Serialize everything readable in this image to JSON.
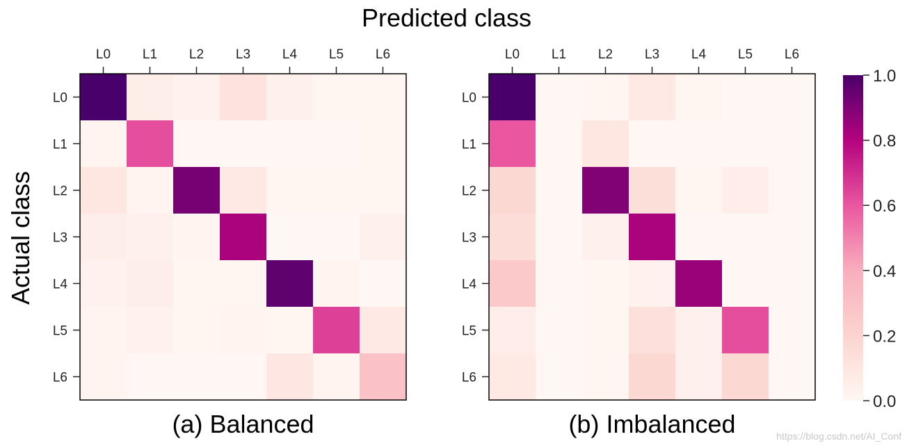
{
  "figure": {
    "title": "Predicted class",
    "ylabel": "Actual class",
    "watermark": "https://blog.csdn.net/AI_Conf"
  },
  "colormap": {
    "name": "RdPu",
    "stops": [
      [
        0.0,
        "#fff7f3"
      ],
      [
        0.2,
        "#fcd4cf"
      ],
      [
        0.4,
        "#f8aebe"
      ],
      [
        0.6,
        "#ea569f"
      ],
      [
        0.8,
        "#b5037f"
      ],
      [
        1.0,
        "#4a006a"
      ]
    ],
    "ticks": [
      "0.0",
      "0.2",
      "0.4",
      "0.6",
      "0.8",
      "1.0"
    ],
    "range": [
      0,
      1
    ]
  },
  "chart_data": [
    {
      "type": "heatmap",
      "title": "(a) Balanced",
      "xlabel": "Predicted class",
      "ylabel": "Actual class",
      "x_categories": [
        "L0",
        "L1",
        "L2",
        "L3",
        "L4",
        "L5",
        "L6"
      ],
      "y_categories": [
        "L0",
        "L1",
        "L2",
        "L3",
        "L4",
        "L5",
        "L6"
      ],
      "values": [
        [
          1.0,
          0.05,
          0.03,
          0.12,
          0.04,
          0.01,
          0.01
        ],
        [
          0.02,
          0.62,
          0.0,
          0.0,
          0.0,
          0.0,
          0.01
        ],
        [
          0.1,
          0.02,
          0.92,
          0.08,
          0.01,
          0.01,
          0.01
        ],
        [
          0.05,
          0.04,
          0.02,
          0.82,
          0.0,
          0.0,
          0.04
        ],
        [
          0.03,
          0.05,
          0.01,
          0.01,
          0.96,
          0.02,
          0.0
        ],
        [
          0.02,
          0.03,
          0.01,
          0.02,
          0.01,
          0.65,
          0.08
        ],
        [
          0.02,
          0.0,
          0.0,
          0.0,
          0.09,
          0.02,
          0.3
        ]
      ],
      "vmin": 0,
      "vmax": 1
    },
    {
      "type": "heatmap",
      "title": "(b) Imbalanced",
      "xlabel": "Predicted class",
      "ylabel": "Actual class",
      "x_categories": [
        "L0",
        "L1",
        "L2",
        "L3",
        "L4",
        "L5",
        "L6"
      ],
      "y_categories": [
        "L0",
        "L1",
        "L2",
        "L3",
        "L4",
        "L5",
        "L6"
      ],
      "values": [
        [
          1.0,
          0.0,
          0.01,
          0.08,
          0.01,
          0.0,
          0.0
        ],
        [
          0.6,
          0.0,
          0.1,
          0.0,
          0.0,
          0.0,
          0.0
        ],
        [
          0.18,
          0.0,
          0.9,
          0.14,
          0.01,
          0.06,
          0.0
        ],
        [
          0.15,
          0.0,
          0.04,
          0.82,
          0.0,
          0.0,
          0.0
        ],
        [
          0.26,
          0.0,
          0.01,
          0.03,
          0.85,
          0.0,
          0.0
        ],
        [
          0.06,
          0.0,
          0.01,
          0.13,
          0.04,
          0.62,
          0.0
        ],
        [
          0.08,
          0.0,
          0.01,
          0.18,
          0.04,
          0.18,
          0.0
        ]
      ],
      "vmin": 0,
      "vmax": 1
    }
  ]
}
